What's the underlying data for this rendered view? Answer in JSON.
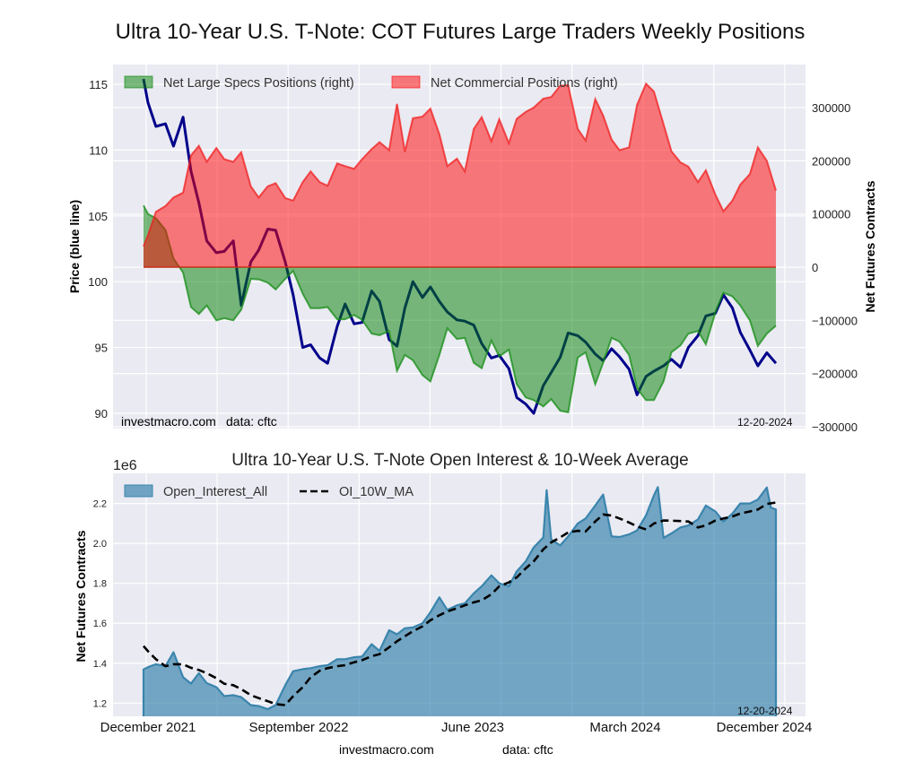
{
  "title": "Ultra 10-Year U.S. T-Note: COT Futures Large Traders Weekly Positions",
  "footer": {
    "site": "investmacro.com",
    "source": "data: cftc"
  },
  "chart_data": [
    {
      "type": "area+line",
      "ylabel_left": "Price (blue line)",
      "ylabel_right": "Net Futures Contracts",
      "left_ylim": [
        88.84,
        116.5
      ],
      "right_ylim": [
        -303500,
        381000
      ],
      "left_ticks": [
        {
          "value": 90,
          "label": "90"
        },
        {
          "value": 95,
          "label": "95"
        },
        {
          "value": 100,
          "label": "100"
        },
        {
          "value": 105,
          "label": "105"
        },
        {
          "value": 110,
          "label": "110"
        },
        {
          "value": 115,
          "label": "115"
        }
      ],
      "right_ticks": [
        {
          "value": -300000,
          "label": "−300000"
        },
        {
          "value": -200000,
          "label": "−200000"
        },
        {
          "value": -100000,
          "label": "−100000"
        },
        {
          "value": 0,
          "label": "0"
        },
        {
          "value": 100000,
          "label": "100000"
        },
        {
          "value": 200000,
          "label": "200000"
        },
        {
          "value": 300000,
          "label": "300000"
        }
      ],
      "grid": true,
      "legend": "top-left",
      "watermark": "investmacro.com",
      "source": "data: cftc",
      "date_label": "12-20-2024",
      "dates": [
        "2021-11-23",
        "2021-12-01",
        "2021-12-15",
        "2022-01-01",
        "2022-01-15",
        "2022-02-01",
        "2022-02-15",
        "2022-03-01",
        "2022-03-15",
        "2022-04-01",
        "2022-04-15",
        "2022-05-01",
        "2022-05-15",
        "2022-06-01",
        "2022-06-15",
        "2022-07-01",
        "2022-07-15",
        "2022-08-01",
        "2022-08-15",
        "2022-09-01",
        "2022-09-15",
        "2022-10-01",
        "2022-10-15",
        "2022-11-01",
        "2022-11-15",
        "2022-12-01",
        "2022-12-15",
        "2023-01-01",
        "2023-01-15",
        "2023-02-01",
        "2023-02-15",
        "2023-03-01",
        "2023-03-15",
        "2023-04-01",
        "2023-04-15",
        "2023-05-01",
        "2023-05-15",
        "2023-06-01",
        "2023-06-15",
        "2023-07-01",
        "2023-07-15",
        "2023-08-01",
        "2023-08-15",
        "2023-09-01",
        "2023-09-15",
        "2023-10-01",
        "2023-10-15",
        "2023-11-01",
        "2023-11-15",
        "2023-12-01",
        "2023-12-15",
        "2024-01-01",
        "2024-01-15",
        "2024-02-01",
        "2024-02-15",
        "2024-03-01",
        "2024-03-15",
        "2024-04-01",
        "2024-04-15",
        "2024-05-01",
        "2024-05-15",
        "2024-06-01",
        "2024-06-15",
        "2024-07-01",
        "2024-07-15",
        "2024-08-01",
        "2024-08-15",
        "2024-09-01",
        "2024-09-15",
        "2024-10-01",
        "2024-10-15",
        "2024-11-01",
        "2024-11-15",
        "2024-12-01",
        "2024-12-17"
      ],
      "series": [
        {
          "name": "Net Large Specs Positions (right)",
          "axis": "right",
          "kind": "area",
          "color": "#008000",
          "values": [
            116000,
            100000,
            92000,
            70000,
            16000,
            -10000,
            -75000,
            -88000,
            -72000,
            -100000,
            -96000,
            -100000,
            -80000,
            -22000,
            -23000,
            -29000,
            -42000,
            -22000,
            -7000,
            -50000,
            -77000,
            -77000,
            -75000,
            -98000,
            -98000,
            -90000,
            -99000,
            -125000,
            -128000,
            -120000,
            -195000,
            -165000,
            -175000,
            -203000,
            -215000,
            -165000,
            -115000,
            -135000,
            -133000,
            -180000,
            -190000,
            -138000,
            -168000,
            -155000,
            -220000,
            -245000,
            -250000,
            -262000,
            -248000,
            -270000,
            -273000,
            -170000,
            -160000,
            -220000,
            -180000,
            -133000,
            -140000,
            -165000,
            -228000,
            -250000,
            -250000,
            -215000,
            -160000,
            -147000,
            -125000,
            -120000,
            -145000,
            -85000,
            -48000,
            -55000,
            -72000,
            -100000,
            -148000,
            -125000,
            -110000
          ]
        },
        {
          "name": "Net Commercial Positions (right)",
          "axis": "right",
          "kind": "area",
          "color": "#ff0000",
          "values": [
            39000,
            60000,
            104000,
            115000,
            131000,
            140000,
            210000,
            228000,
            198000,
            224000,
            203000,
            198000,
            216000,
            152000,
            131000,
            152000,
            158000,
            130000,
            125000,
            160000,
            180000,
            160000,
            153000,
            195000,
            190000,
            185000,
            203000,
            222000,
            235000,
            220000,
            307000,
            217000,
            280000,
            283000,
            298000,
            250000,
            190000,
            204000,
            180000,
            260000,
            282000,
            237000,
            278000,
            233000,
            279000,
            292000,
            300000,
            317000,
            320000,
            341000,
            342000,
            260000,
            238000,
            316000,
            285000,
            240000,
            220000,
            225000,
            305000,
            345000,
            330000,
            269000,
            218000,
            197000,
            189000,
            160000,
            182000,
            136000,
            105000,
            125000,
            155000,
            175000,
            225000,
            200000,
            144000
          ]
        },
        {
          "axis": "left",
          "kind": "line",
          "color": "#00008b",
          "values": [
            115.4,
            113.6,
            111.8,
            112.0,
            110.3,
            112.5,
            108.4,
            106.0,
            103.1,
            102.2,
            102.3,
            103.1,
            98.2,
            101.5,
            102.4,
            104.0,
            103.9,
            101.5,
            99.0,
            95.0,
            95.2,
            94.2,
            93.8,
            96.6,
            98.3,
            96.8,
            96.9,
            99.3,
            98.5,
            95.6,
            95.1,
            98.0,
            100.0,
            98.8,
            99.6,
            98.5,
            97.7,
            97.1,
            97.0,
            96.7,
            95.3,
            94.2,
            94.4,
            93.4,
            91.2,
            90.7,
            90.0,
            92.1,
            93.1,
            94.25,
            96.1,
            95.9,
            95.4,
            94.5,
            94.0,
            94.9,
            94.3,
            93.35,
            91.4,
            92.8,
            93.2,
            93.6,
            94.1,
            93.5,
            95.0,
            95.9,
            97.4,
            97.6,
            99.0,
            98.0,
            96.15,
            94.8,
            93.6,
            94.6,
            93.8
          ]
        }
      ]
    },
    {
      "type": "area+line",
      "title": "Ultra 10-Year U.S. T-Note Open Interest & 10-Week Average",
      "ylabel": "Net Futures Contracts",
      "y_offset_label": "1e6",
      "ylim": [
        1.134,
        2.351
      ],
      "y_ticks": [
        {
          "value": 1.2,
          "label": "1.2"
        },
        {
          "value": 1.4,
          "label": "1.4"
        },
        {
          "value": 1.6,
          "label": "1.6"
        },
        {
          "value": 1.8,
          "label": "1.8"
        },
        {
          "value": 2.0,
          "label": "2.0"
        },
        {
          "value": 2.2,
          "label": "2.2"
        }
      ],
      "x_tick_labels": [
        "December 2021",
        "September 2022",
        "June 2023",
        "March 2024",
        "December 2024"
      ],
      "grid": true,
      "legend": "top-left",
      "date_label": "12-20-2024",
      "series": [
        {
          "name": "Open_Interest_All",
          "kind": "area",
          "color": "#3a85ad",
          "dates": [
            "2021-11-23",
            "2021-12-01",
            "2021-12-15",
            "2022-01-01",
            "2022-01-15",
            "2022-02-01",
            "2022-02-15",
            "2022-03-01",
            "2022-03-15",
            "2022-04-01",
            "2022-04-15",
            "2022-05-01",
            "2022-05-15",
            "2022-06-01",
            "2022-06-15",
            "2022-07-01",
            "2022-07-15",
            "2022-08-01",
            "2022-08-15",
            "2022-09-01",
            "2022-09-15",
            "2022-10-01",
            "2022-10-15",
            "2022-11-01",
            "2022-11-15",
            "2022-12-01",
            "2022-12-15",
            "2023-01-01",
            "2023-01-15",
            "2023-02-01",
            "2023-02-15",
            "2023-03-01",
            "2023-03-15",
            "2023-04-01",
            "2023-04-15",
            "2023-05-01",
            "2023-05-15",
            "2023-06-01",
            "2023-06-15",
            "2023-07-01",
            "2023-07-15",
            "2023-08-01",
            "2023-08-15",
            "2023-09-01",
            "2023-09-15",
            "2023-10-01",
            "2023-10-15",
            "2023-11-01",
            "2023-11-07",
            "2023-11-15",
            "2023-12-01",
            "2023-12-15",
            "2024-01-01",
            "2024-01-15",
            "2024-02-01",
            "2024-02-15",
            "2024-03-01",
            "2024-03-15",
            "2024-04-01",
            "2024-04-15",
            "2024-05-01",
            "2024-05-15",
            "2024-05-22",
            "2024-06-01",
            "2024-06-15",
            "2024-07-01",
            "2024-07-15",
            "2024-08-01",
            "2024-08-15",
            "2024-09-01",
            "2024-09-15",
            "2024-10-01",
            "2024-10-15",
            "2024-11-01",
            "2024-11-15",
            "2024-12-01",
            "2024-12-08",
            "2024-12-17"
          ],
          "values": [
            1.369,
            1.38,
            1.395,
            1.385,
            1.455,
            1.33,
            1.298,
            1.35,
            1.3,
            1.28,
            1.235,
            1.24,
            1.23,
            1.19,
            1.185,
            1.17,
            1.19,
            1.29,
            1.36,
            1.37,
            1.375,
            1.385,
            1.39,
            1.42,
            1.42,
            1.43,
            1.433,
            1.495,
            1.462,
            1.565,
            1.545,
            1.575,
            1.579,
            1.6,
            1.655,
            1.73,
            1.667,
            1.69,
            1.7,
            1.75,
            1.785,
            1.84,
            1.8,
            1.785,
            1.86,
            1.91,
            1.98,
            2.03,
            2.267,
            2.02,
            1.99,
            2.035,
            2.1,
            2.125,
            2.19,
            2.245,
            2.035,
            2.032,
            2.045,
            2.065,
            2.14,
            2.24,
            2.282,
            2.028,
            2.05,
            2.08,
            2.09,
            2.12,
            2.19,
            2.16,
            2.11,
            2.15,
            2.2,
            2.2,
            2.22,
            2.28,
            2.18,
            2.17
          ]
        },
        {
          "name": "OI_10W_MA",
          "kind": "dashed-line",
          "color": "#000000",
          "dates": [
            "2021-11-23",
            "2021-12-01",
            "2021-12-15",
            "2022-01-01",
            "2022-01-15",
            "2022-02-01",
            "2022-02-15",
            "2022-03-01",
            "2022-03-15",
            "2022-04-01",
            "2022-04-15",
            "2022-05-01",
            "2022-05-15",
            "2022-06-01",
            "2022-06-15",
            "2022-07-01",
            "2022-07-15",
            "2022-08-01",
            "2022-08-15",
            "2022-09-01",
            "2022-09-15",
            "2022-10-01",
            "2022-10-15",
            "2022-11-01",
            "2022-11-15",
            "2022-12-01",
            "2022-12-15",
            "2023-01-01",
            "2023-01-15",
            "2023-02-01",
            "2023-02-15",
            "2023-03-01",
            "2023-03-15",
            "2023-04-01",
            "2023-04-15",
            "2023-05-01",
            "2023-05-15",
            "2023-06-01",
            "2023-06-15",
            "2023-07-01",
            "2023-07-15",
            "2023-08-01",
            "2023-08-15",
            "2023-09-01",
            "2023-09-15",
            "2023-10-01",
            "2023-10-15",
            "2023-11-01",
            "2023-11-15",
            "2023-12-01",
            "2023-12-15",
            "2024-01-01",
            "2024-01-15",
            "2024-02-01",
            "2024-02-15",
            "2024-03-01",
            "2024-03-15",
            "2024-04-01",
            "2024-04-15",
            "2024-05-01",
            "2024-05-15",
            "2024-06-01",
            "2024-06-15",
            "2024-07-01",
            "2024-07-15",
            "2024-08-01",
            "2024-08-15",
            "2024-09-01",
            "2024-09-15",
            "2024-10-01",
            "2024-10-15",
            "2024-11-01",
            "2024-11-15",
            "2024-12-01",
            "2024-12-17"
          ],
          "values": [
            1.486,
            1.46,
            1.42,
            1.385,
            1.395,
            1.395,
            1.377,
            1.366,
            1.35,
            1.325,
            1.297,
            1.29,
            1.27,
            1.24,
            1.225,
            1.21,
            1.195,
            1.19,
            1.235,
            1.28,
            1.33,
            1.362,
            1.375,
            1.385,
            1.39,
            1.405,
            1.415,
            1.435,
            1.445,
            1.48,
            1.51,
            1.535,
            1.56,
            1.585,
            1.615,
            1.64,
            1.66,
            1.675,
            1.69,
            1.705,
            1.715,
            1.745,
            1.785,
            1.805,
            1.83,
            1.875,
            1.91,
            1.97,
            2.005,
            2.03,
            2.055,
            2.063,
            2.06,
            2.11,
            2.145,
            2.14,
            2.125,
            2.105,
            2.085,
            2.07,
            2.1,
            2.115,
            2.114,
            2.112,
            2.11,
            2.08,
            2.09,
            2.115,
            2.125,
            2.135,
            2.15,
            2.16,
            2.17,
            2.198,
            2.205
          ]
        }
      ]
    }
  ]
}
